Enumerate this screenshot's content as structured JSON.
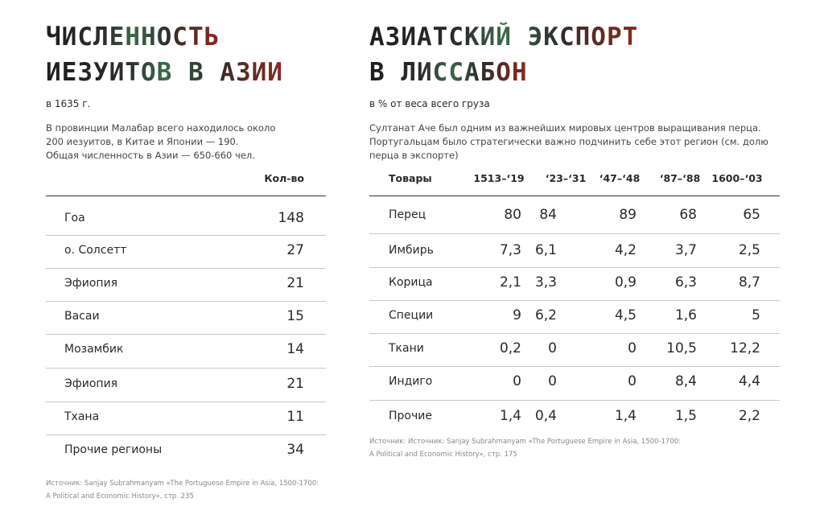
{
  "left": {
    "title": [
      "ЧИСЛЕННОСТЬ",
      "ИЕЗУИТОВ В АЗИИ"
    ],
    "subtitle": "в 1635 г.",
    "description": [
      "В провинции Малабар всего находилось около",
      "200 иезуитов, в Китае и Японии — 190.",
      "Общая численность в Азии — 650-660 чел."
    ],
    "table": {
      "column_header": "Кол-во",
      "rows": [
        [
          "Гоа",
          "148"
        ],
        [
          "о. Солсетт",
          "27"
        ],
        [
          "Эфиопия",
          "21"
        ],
        [
          "Васаи",
          "15"
        ],
        [
          "Мозамбик",
          "14"
        ],
        [
          "Эфиопия",
          "21"
        ],
        [
          "Тхана",
          "11"
        ],
        [
          "Прочие регионы",
          "34"
        ]
      ]
    },
    "source": [
      "Источник: Sanjay Subrahmanyam «The Portuguese Empire in Asia, 1500-1700:",
      "A Political and Economic History», стр. 235"
    ]
  },
  "right": {
    "title": [
      "АЗИАТСКИЙ ЭКСПОРТ",
      "В ЛИССАБОН"
    ],
    "subtitle": "в % от веса всего груза",
    "description": [
      "Султанат Аче был одним из важнейших мировых центров выращивания перца.",
      "Португальцам было стратегически важно подчинить себе этот регион (см. долю",
      "перца в экспорте)"
    ],
    "table": {
      "header": [
        "Товары",
        "1513–‘19",
        "‘23–‘31",
        "‘47–‘48",
        "‘87–‘88",
        "1600–‘03"
      ],
      "rows": [
        [
          "Перец",
          "80",
          "84",
          "89",
          "68",
          "65"
        ],
        [
          "Имбирь",
          "7,3",
          "6,1",
          "4,2",
          "3,7",
          "2,5"
        ],
        [
          "Корица",
          "2,1",
          "3,3",
          "0,9",
          "6,3",
          "8,7"
        ],
        [
          "Специи",
          "9",
          "6,2",
          "4,5",
          "1,6",
          "5"
        ],
        [
          "Ткани",
          "0,2",
          "0",
          "0",
          "10,5",
          "12,2"
        ],
        [
          "Индиго",
          "0",
          "0",
          "0",
          "8,4",
          "4,4"
        ],
        [
          "Прочие",
          "1,4",
          "0,4",
          "1,4",
          "1,5",
          "2,2"
        ]
      ]
    },
    "source": [
      "Источник: Источник: Sanjay Subrahmanyam «The Portuguese Empire in Asia, 1500-1700:",
      "A Political and Economic History», стр. 175"
    ]
  }
}
